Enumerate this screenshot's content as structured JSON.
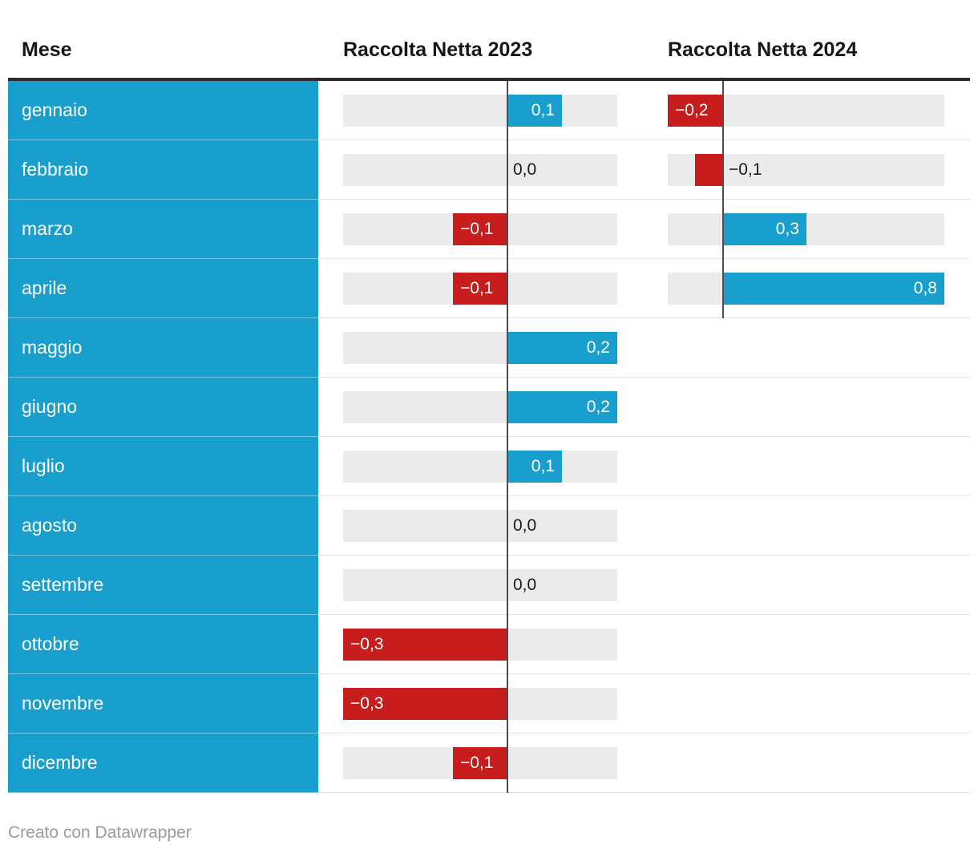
{
  "header": {
    "col_month": "Mese",
    "col_2023": "Raccolta Netta 2023",
    "col_2024": "Raccolta Netta 2024"
  },
  "footer": {
    "attribution": "Creato con Datawrapper"
  },
  "colors": {
    "positive_bar": "#189fcd",
    "negative_bar": "#c71e1d",
    "month_column_bg": "#189fcd",
    "bar_track": "#ebebeb",
    "axis_line": "#4d4d4d",
    "header_rule": "#2b2b2b",
    "label_on_bar": "#ffffff",
    "label_outside_bar": "#1a1a1a",
    "footer_text": "#9b9b9b"
  },
  "rows": [
    {
      "month": "gennaio",
      "y2023": {
        "value": 0.1,
        "label": "0,1"
      },
      "y2024": {
        "value": -0.2,
        "label": "−0,2"
      }
    },
    {
      "month": "febbraio",
      "y2023": {
        "value": 0.0,
        "label": "0,0"
      },
      "y2024": {
        "value": -0.1,
        "label": "−0,1"
      }
    },
    {
      "month": "marzo",
      "y2023": {
        "value": -0.1,
        "label": "−0,1"
      },
      "y2024": {
        "value": 0.3,
        "label": "0,3"
      }
    },
    {
      "month": "aprile",
      "y2023": {
        "value": -0.1,
        "label": "−0,1"
      },
      "y2024": {
        "value": 0.8,
        "label": "0,8"
      }
    },
    {
      "month": "maggio",
      "y2023": {
        "value": 0.2,
        "label": "0,2"
      },
      "y2024": null
    },
    {
      "month": "giugno",
      "y2023": {
        "value": 0.2,
        "label": "0,2"
      },
      "y2024": null
    },
    {
      "month": "luglio",
      "y2023": {
        "value": 0.1,
        "label": "0,1"
      },
      "y2024": null
    },
    {
      "month": "agosto",
      "y2023": {
        "value": 0.0,
        "label": "0,0"
      },
      "y2024": null
    },
    {
      "month": "settembre",
      "y2023": {
        "value": 0.0,
        "label": "0,0"
      },
      "y2024": null
    },
    {
      "month": "ottobre",
      "y2023": {
        "value": -0.3,
        "label": "−0,3"
      },
      "y2024": null
    },
    {
      "month": "novembre",
      "y2023": {
        "value": -0.3,
        "label": "−0,3"
      },
      "y2024": null
    },
    {
      "month": "dicembre",
      "y2023": {
        "value": -0.1,
        "label": "−0,1"
      },
      "y2024": null
    }
  ],
  "chart_data": {
    "type": "bar",
    "orientation": "horizontal",
    "title": "",
    "xlabel": "Mese",
    "ylabel": "Raccolta Netta",
    "categories": [
      "gennaio",
      "febbraio",
      "marzo",
      "aprile",
      "maggio",
      "giugno",
      "luglio",
      "agosto",
      "settembre",
      "ottobre",
      "novembre",
      "dicembre"
    ],
    "series": [
      {
        "name": "Raccolta Netta 2023",
        "values": [
          0.1,
          0.0,
          -0.1,
          -0.1,
          0.2,
          0.2,
          0.1,
          0.0,
          0.0,
          -0.3,
          -0.3,
          -0.1
        ],
        "labels": [
          "0,1",
          "0,0",
          "−0,1",
          "−0,1",
          "0,2",
          "0,2",
          "0,1",
          "0,0",
          "0,0",
          "−0,3",
          "−0,3",
          "−0,1"
        ],
        "axis_range": [
          -0.3,
          0.2
        ]
      },
      {
        "name": "Raccolta Netta 2024",
        "values": [
          -0.2,
          -0.1,
          0.3,
          0.8,
          null,
          null,
          null,
          null,
          null,
          null,
          null,
          null
        ],
        "labels": [
          "−0,2",
          "−0,1",
          "0,3",
          "0,8",
          null,
          null,
          null,
          null,
          null,
          null,
          null,
          null
        ],
        "axis_range": [
          -0.2,
          0.8
        ]
      }
    ],
    "grid": false,
    "legend_position": "column-headers",
    "value_format": "comma_decimal"
  }
}
